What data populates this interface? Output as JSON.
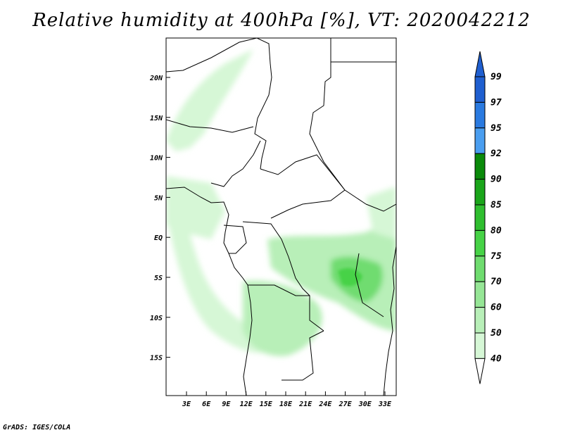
{
  "title": "Relative humidity at 400hPa [%], VT: 2020042212",
  "credit": "GrADS: IGES/COLA",
  "map": {
    "lat_labels": [
      "20N",
      "15N",
      "10N",
      "5N",
      "EQ",
      "5S",
      "10S",
      "15S"
    ],
    "lon_labels": [
      "3E",
      "6E",
      "9E",
      "12E",
      "15E",
      "18E",
      "21E",
      "24E",
      "27E",
      "30E",
      "33E"
    ]
  },
  "colorbar": {
    "levels": [
      "99",
      "97",
      "95",
      "92",
      "90",
      "85",
      "80",
      "75",
      "70",
      "60",
      "50",
      "40"
    ],
    "colors": [
      "#1f5fd0",
      "#2a7ae0",
      "#4a9ef0",
      "#0a8a0a",
      "#1aa51a",
      "#2fbe2f",
      "#46d246",
      "#6fdc6f",
      "#96e696",
      "#b8efb8",
      "#d6f7d6",
      "#eefcee"
    ]
  }
}
